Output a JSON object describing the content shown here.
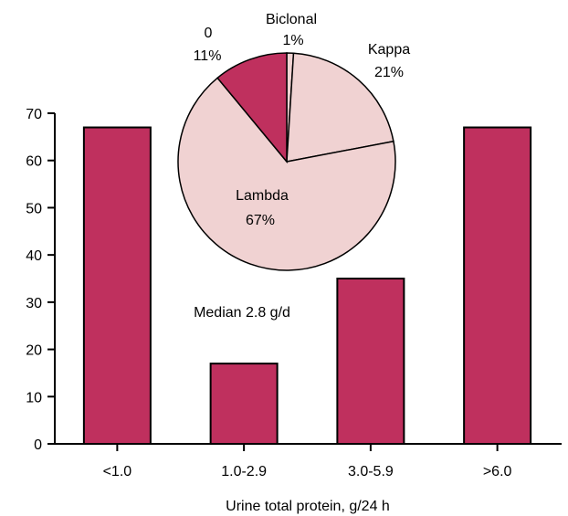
{
  "chart_data": [
    {
      "type": "bar",
      "categories": [
        "<1.0",
        "1.0-2.9",
        "3.0-5.9",
        ">6.0"
      ],
      "values": [
        67,
        17,
        35,
        67
      ],
      "xlabel": "Urine total protein, g/24 h",
      "ylabel": "",
      "ylim": [
        0,
        70
      ],
      "yticks": [
        0,
        10,
        20,
        30,
        40,
        50,
        60,
        70
      ],
      "grid": false,
      "annotation": "Median 2.8 g/d",
      "color": "#bf305e"
    },
    {
      "type": "pie",
      "slices": [
        {
          "label": "Biclonal",
          "value": 1,
          "value_label": "1%",
          "color": "#f0d2d2"
        },
        {
          "label": "Kappa",
          "value": 21,
          "value_label": "21%",
          "color": "#f0d2d2"
        },
        {
          "label": "Lambda",
          "value": 67,
          "value_label": "67%",
          "color": "#f0d2d2"
        },
        {
          "label": "0",
          "value": 11,
          "value_label": "11%",
          "color": "#bf305e"
        }
      ]
    }
  ]
}
